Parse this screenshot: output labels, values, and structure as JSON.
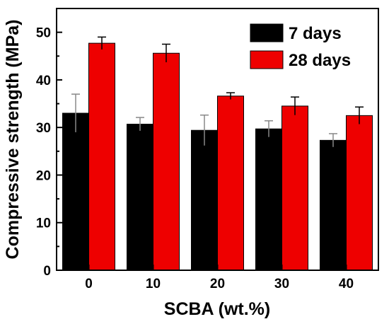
{
  "chart_data": {
    "type": "bar",
    "categories": [
      "0",
      "10",
      "20",
      "30",
      "40"
    ],
    "xlabel": "SCBA (wt.%)",
    "ylabel": "Compressive strength (MPa)",
    "ylim": [
      0,
      55
    ],
    "yticks": [
      0,
      10,
      20,
      30,
      40,
      50
    ],
    "legend_position": "top-right",
    "grid": false,
    "series": [
      {
        "name": "7 days",
        "color": "#000000",
        "values": [
          33.0,
          30.7,
          29.4,
          29.7,
          27.3
        ],
        "errors": [
          4.0,
          1.4,
          3.2,
          1.7,
          1.4
        ]
      },
      {
        "name": "28 days",
        "color": "#ee0000",
        "values": [
          47.7,
          45.6,
          36.6,
          34.5,
          32.5
        ],
        "errors": [
          1.3,
          1.9,
          0.7,
          1.9,
          1.8
        ]
      }
    ]
  }
}
